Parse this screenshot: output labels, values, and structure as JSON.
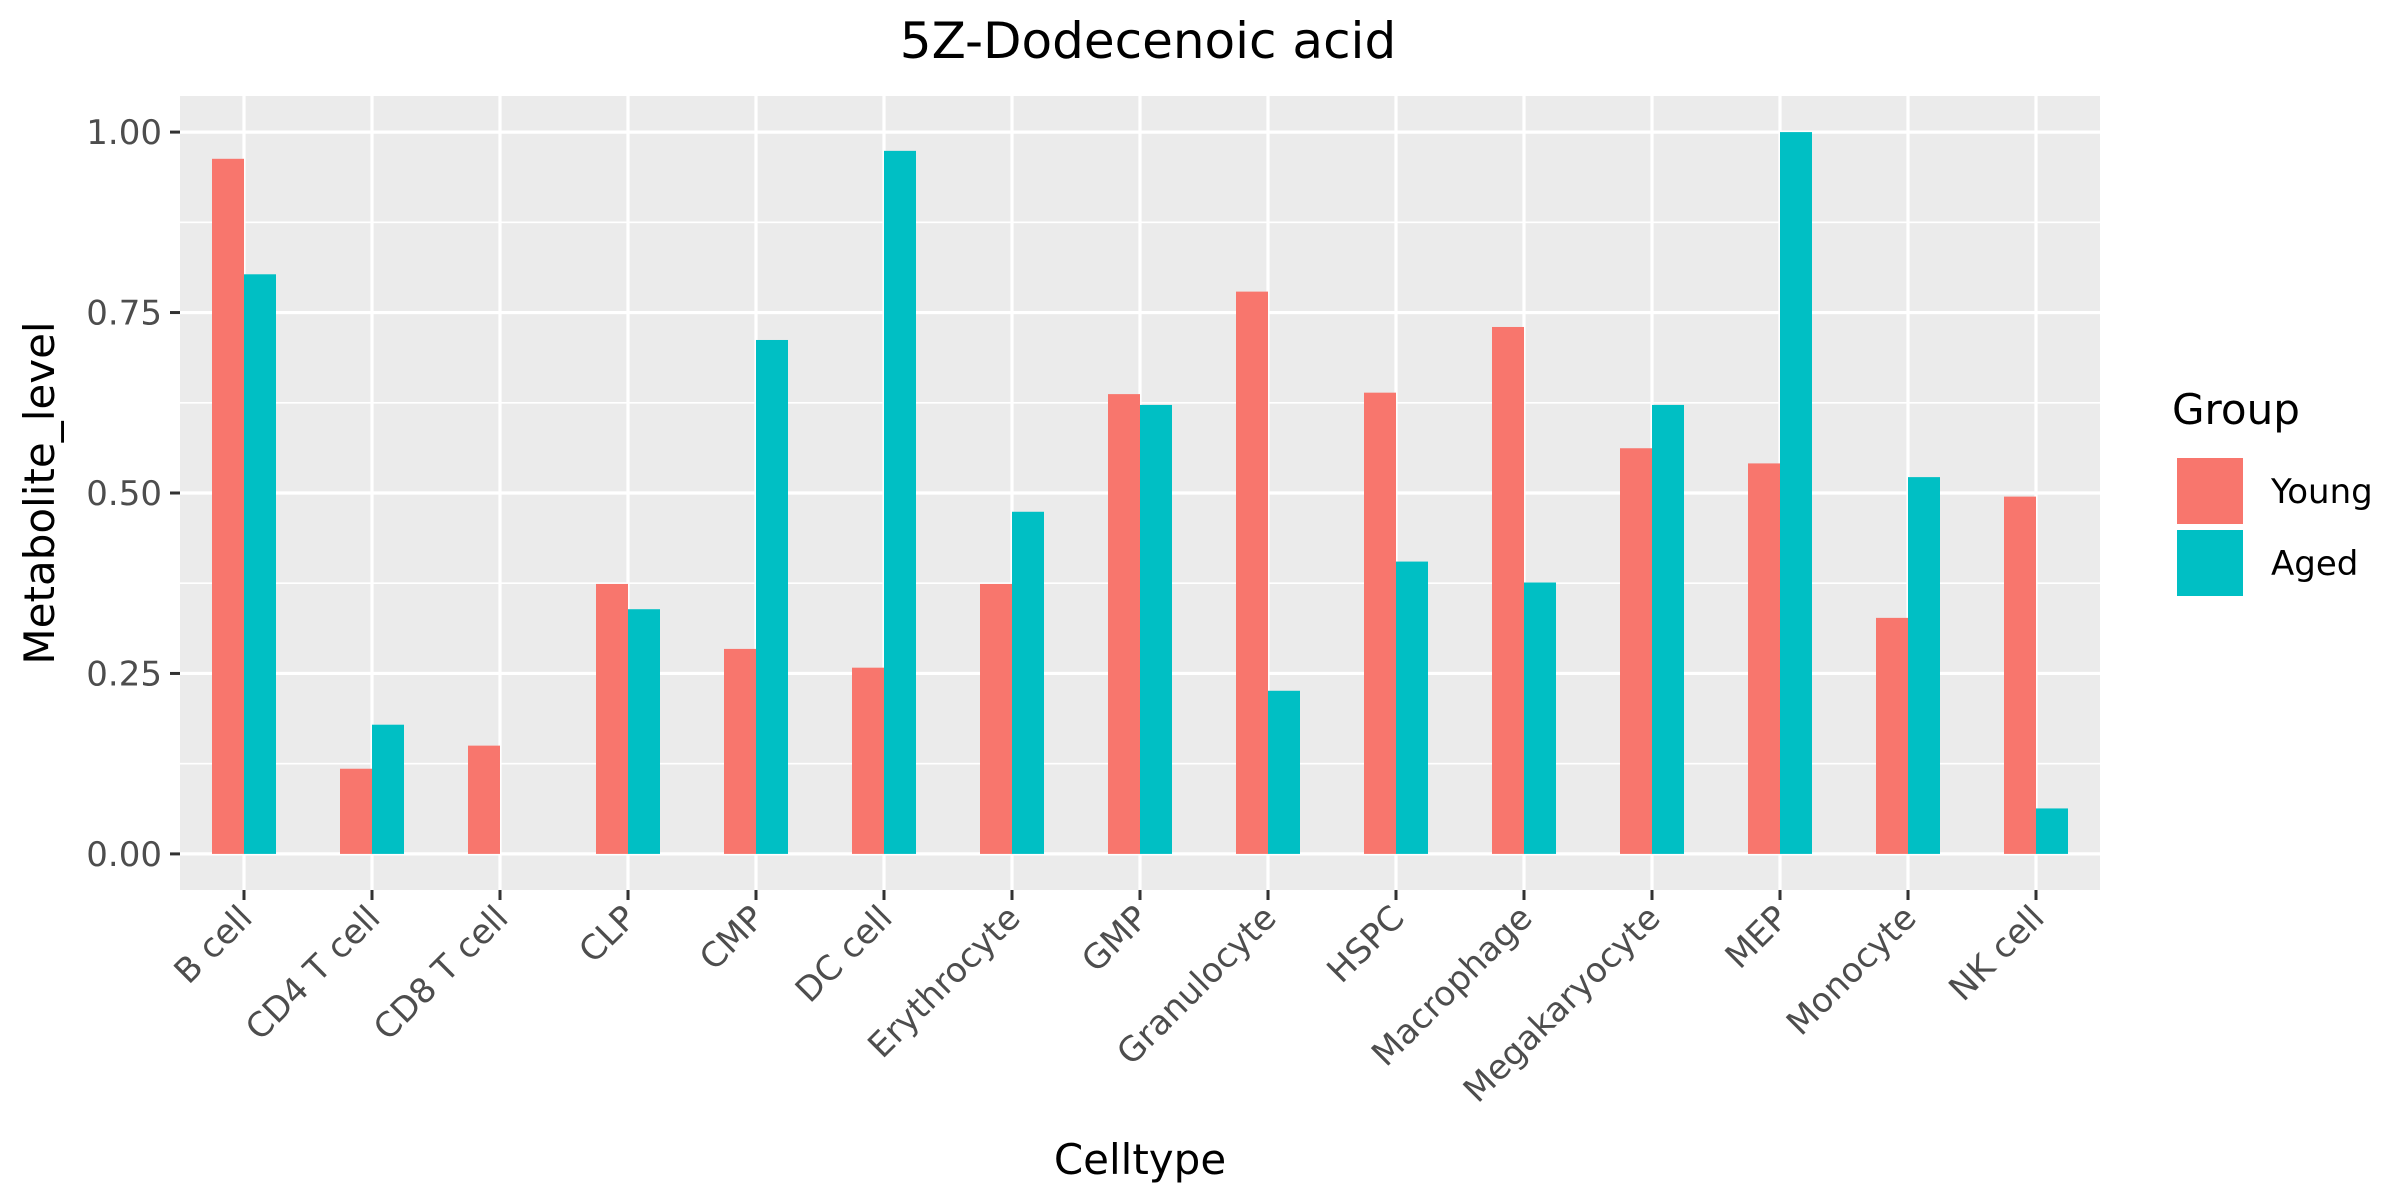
{
  "chart_data": {
    "type": "bar",
    "title": "5Z-Dodecenoic acid",
    "xlabel": "Celltype",
    "ylabel": "Metabolite_level",
    "ylim": [
      -0.05,
      1.05
    ],
    "yticks": [
      0.0,
      0.25,
      0.5,
      0.75,
      1.0
    ],
    "ytick_labels": [
      "0.00",
      "0.25",
      "0.50",
      "0.75",
      "1.00"
    ],
    "grid": true,
    "legend": {
      "title": "Group",
      "position": "right"
    },
    "categories": [
      "B cell",
      "CD4 T cell",
      "CD8 T cell",
      "CLP",
      "CMP",
      "DC cell",
      "Erythrocyte",
      "GMP",
      "Granulocyte",
      "HSPC",
      "Macrophage",
      "Megakaryocyte",
      "MEP",
      "Monocyte",
      "NK cell"
    ],
    "series": [
      {
        "name": "Young",
        "color": "#F8766D",
        "values": [
          0.963,
          0.118,
          0.15,
          0.374,
          0.284,
          0.258,
          0.374,
          0.637,
          0.779,
          0.639,
          0.73,
          0.562,
          0.541,
          0.327,
          0.495
        ]
      },
      {
        "name": "Aged",
        "color": "#00BFC4",
        "values": [
          0.803,
          0.179,
          0.0,
          0.339,
          0.712,
          0.974,
          0.474,
          0.622,
          0.226,
          0.405,
          0.376,
          0.622,
          1.0,
          0.522,
          0.063
        ]
      }
    ]
  }
}
